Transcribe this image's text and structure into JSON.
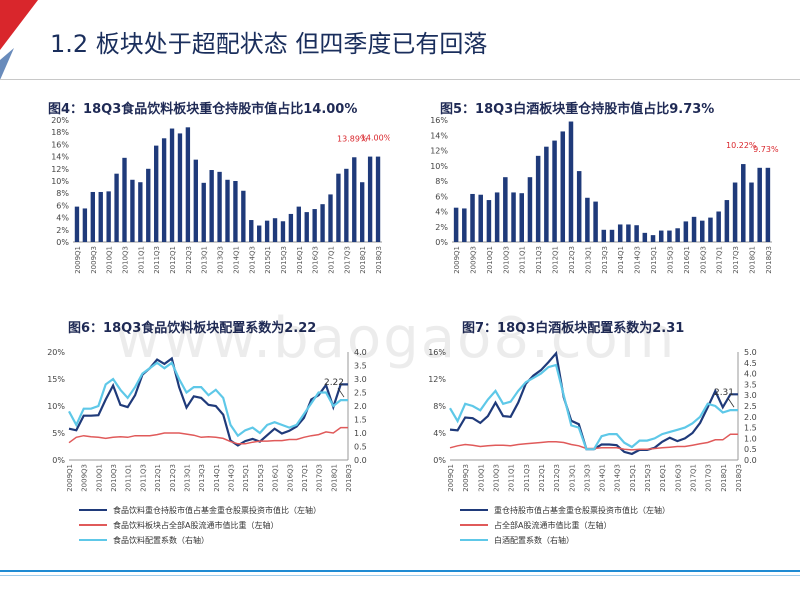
{
  "slide": {
    "title": "1.2 板块处于超配状态 但四季度已有回落",
    "watermark": "www.baogao8.com"
  },
  "chart_data": [
    {
      "id": "fig4",
      "type": "bar",
      "title": "图4：18Q3食品饮料板块重仓持股市值占比14.00%",
      "color": "#1f3a7a",
      "ylim": [
        0,
        20
      ],
      "yticks": [
        "0%",
        "2%",
        "4%",
        "6%",
        "8%",
        "10%",
        "12%",
        "14%",
        "16%",
        "18%",
        "20%"
      ],
      "categories": [
        "2009Q1",
        "2009Q2",
        "2009Q3",
        "2009Q4",
        "2010Q1",
        "2010Q2",
        "2010Q3",
        "2010Q4",
        "2011Q1",
        "2011Q2",
        "2011Q3",
        "2011Q4",
        "2012Q1",
        "2012Q2",
        "2012Q3",
        "2012Q4",
        "2013Q1",
        "2013Q2",
        "2013Q3",
        "2013Q4",
        "2014Q1",
        "2014Q2",
        "2014Q3",
        "2014Q4",
        "2015Q1",
        "2015Q2",
        "2015Q3",
        "2015Q4",
        "2016Q1",
        "2016Q2",
        "2016Q3",
        "2016Q4",
        "2017Q1",
        "2017Q2",
        "2017Q3",
        "2017Q4",
        "2018Q1",
        "2018Q2",
        "2018Q3"
      ],
      "xticklabels": [
        "2009Q1",
        "2009Q3",
        "2010Q1",
        "2010Q3",
        "2011Q1",
        "2011Q3",
        "2012Q1",
        "2012Q3",
        "2013Q1",
        "2013Q3",
        "2014Q1",
        "2014Q3",
        "2015Q1",
        "2015Q3",
        "2016Q1",
        "2016Q3",
        "2017Q1",
        "2017Q3",
        "2018Q1",
        "2018Q3"
      ],
      "values": [
        5.8,
        5.5,
        8.2,
        8.2,
        8.3,
        11.2,
        13.8,
        10.2,
        9.8,
        12.0,
        15.8,
        17.0,
        18.6,
        17.8,
        18.8,
        13.5,
        9.7,
        11.8,
        11.5,
        10.2,
        10.0,
        8.4,
        3.6,
        2.7,
        3.5,
        3.9,
        3.4,
        4.6,
        5.8,
        4.9,
        5.4,
        6.2,
        7.8,
        11.2,
        12.0,
        13.89,
        9.8,
        14.0,
        14.0
      ],
      "annotations": [
        {
          "index": 35,
          "text": "13.89%"
        },
        {
          "index": 38,
          "text": "14.00%"
        }
      ]
    },
    {
      "id": "fig5",
      "type": "bar",
      "title": "图5：18Q3白酒板块重仓持股市值占比9.73%",
      "color": "#1f3a7a",
      "ylim": [
        0,
        16
      ],
      "yticks": [
        "0%",
        "2%",
        "4%",
        "6%",
        "8%",
        "10%",
        "12%",
        "14%",
        "16%"
      ],
      "categories": [
        "2009Q1",
        "2009Q2",
        "2009Q3",
        "2009Q4",
        "2010Q1",
        "2010Q2",
        "2010Q3",
        "2010Q4",
        "2011Q1",
        "2011Q2",
        "2011Q3",
        "2011Q4",
        "2012Q1",
        "2012Q2",
        "2012Q3",
        "2012Q4",
        "2013Q1",
        "2013Q2",
        "2013Q3",
        "2013Q4",
        "2014Q1",
        "2014Q2",
        "2014Q3",
        "2014Q4",
        "2015Q1",
        "2015Q2",
        "2015Q3",
        "2015Q4",
        "2016Q1",
        "2016Q2",
        "2016Q3",
        "2016Q4",
        "2017Q1",
        "2017Q2",
        "2017Q3",
        "2017Q4",
        "2018Q1",
        "2018Q2",
        "2018Q3"
      ],
      "xticklabels": [
        "2009Q1",
        "2009Q3",
        "2010Q1",
        "2010Q3",
        "2011Q1",
        "2011Q3",
        "2012Q1",
        "2012Q3",
        "2013Q1",
        "2013Q3",
        "2014Q1",
        "2014Q3",
        "2015Q1",
        "2015Q3",
        "2016Q1",
        "2016Q3",
        "2017Q1",
        "2017Q3",
        "2018Q1",
        "2018Q3"
      ],
      "values": [
        4.5,
        4.4,
        6.3,
        6.2,
        5.5,
        6.5,
        8.5,
        6.5,
        6.4,
        8.5,
        11.3,
        12.5,
        13.3,
        14.5,
        15.8,
        9.3,
        5.8,
        5.3,
        1.6,
        1.6,
        2.3,
        2.3,
        2.2,
        1.2,
        0.9,
        1.5,
        1.5,
        1.8,
        2.7,
        3.3,
        2.8,
        3.2,
        4.0,
        5.5,
        7.8,
        10.22,
        7.8,
        9.73,
        9.73
      ],
      "annotations": [
        {
          "index": 35,
          "text": "10.22%"
        },
        {
          "index": 38,
          "text": "9.73%"
        }
      ]
    },
    {
      "id": "fig6",
      "type": "line",
      "title": "图6：18Q3食品饮料板块配置系数为2.22",
      "ylim": [
        0,
        20
      ],
      "yticks": [
        "0%",
        "5%",
        "10%",
        "15%",
        "20%"
      ],
      "y2lim": [
        0,
        4
      ],
      "y2ticks": [
        "0.0",
        "0.5",
        "1.0",
        "1.5",
        "2.0",
        "2.5",
        "3.0",
        "3.5",
        "4.0"
      ],
      "x": [
        "2009Q1",
        "2009Q2",
        "2009Q3",
        "2009Q4",
        "2010Q1",
        "2010Q2",
        "2010Q3",
        "2010Q4",
        "2011Q1",
        "2011Q2",
        "2011Q3",
        "2011Q4",
        "2012Q1",
        "2012Q2",
        "2012Q3",
        "2012Q4",
        "2013Q1",
        "2013Q2",
        "2013Q3",
        "2013Q4",
        "2014Q1",
        "2014Q2",
        "2014Q3",
        "2014Q4",
        "2015Q1",
        "2015Q2",
        "2015Q3",
        "2015Q4",
        "2016Q1",
        "2016Q2",
        "2016Q3",
        "2016Q4",
        "2017Q1",
        "2017Q2",
        "2017Q3",
        "2017Q4",
        "2018Q1",
        "2018Q2",
        "2018Q3"
      ],
      "xticklabels": [
        "2009Q1",
        "2009Q3",
        "2010Q1",
        "2010Q3",
        "2011Q1",
        "2011Q3",
        "2012Q1",
        "2012Q3",
        "2013Q1",
        "2013Q3",
        "2014Q1",
        "2014Q3",
        "2015Q1",
        "2015Q3",
        "2016Q1",
        "2016Q3",
        "2017Q1",
        "2017Q3",
        "2018Q1",
        "2018Q3"
      ],
      "series": [
        {
          "name": "食品饮料重仓持股市值占基金重仓股票投资市值比（左轴）",
          "axis": "left",
          "color": "#1f3a7a",
          "width": 2.2,
          "values": [
            5.8,
            5.5,
            8.2,
            8.2,
            8.3,
            11.2,
            13.8,
            10.2,
            9.8,
            12.0,
            15.8,
            17.0,
            18.6,
            17.8,
            18.8,
            13.5,
            9.7,
            11.8,
            11.5,
            10.2,
            10.0,
            8.4,
            3.6,
            2.7,
            3.5,
            3.9,
            3.4,
            4.6,
            5.8,
            4.9,
            5.4,
            6.2,
            7.8,
            11.2,
            12.0,
            13.89,
            9.8,
            14.0,
            14.0
          ]
        },
        {
          "name": "食品饮料板块占全部A股流通市值比重（左轴）",
          "axis": "left",
          "color": "#e05a5a",
          "width": 1.5,
          "values": [
            3.2,
            4.2,
            4.5,
            4.3,
            4.2,
            4.0,
            4.2,
            4.3,
            4.2,
            4.5,
            4.5,
            4.5,
            4.7,
            5.0,
            5.0,
            5.0,
            4.8,
            4.6,
            4.2,
            4.3,
            4.2,
            4.0,
            3.4,
            3.0,
            3.0,
            3.3,
            3.5,
            3.5,
            3.6,
            3.6,
            3.8,
            3.8,
            4.2,
            4.5,
            4.7,
            5.2,
            5.0,
            6.0,
            6.0
          ]
        },
        {
          "name": "食品饮料配置系数（右轴）",
          "axis": "right",
          "color": "#5ec8e8",
          "width": 2.2,
          "values": [
            1.8,
            1.3,
            1.9,
            1.9,
            2.0,
            2.8,
            3.0,
            2.6,
            2.3,
            2.7,
            3.2,
            3.4,
            3.6,
            3.4,
            3.6,
            3.0,
            2.5,
            2.7,
            2.7,
            2.4,
            2.6,
            2.3,
            1.3,
            0.9,
            1.1,
            1.2,
            1.0,
            1.3,
            1.4,
            1.3,
            1.2,
            1.3,
            1.7,
            2.1,
            2.5,
            2.5,
            2.0,
            2.22,
            2.22
          ]
        }
      ],
      "annotations": [
        {
          "series": 2,
          "index": 38,
          "text": "2.22"
        }
      ]
    },
    {
      "id": "fig7",
      "type": "line",
      "title": "图7：18Q3白酒板块配置系数为2.31",
      "ylim": [
        0,
        16
      ],
      "yticks": [
        "0%",
        "4%",
        "8%",
        "12%",
        "16%"
      ],
      "y2lim": [
        0,
        5
      ],
      "y2ticks": [
        "0.0",
        "0.5",
        "1.0",
        "1.5",
        "2.0",
        "2.5",
        "3.0",
        "3.5",
        "4.0",
        "4.5",
        "5.0"
      ],
      "x": [
        "2009Q1",
        "2009Q2",
        "2009Q3",
        "2009Q4",
        "2010Q1",
        "2010Q2",
        "2010Q3",
        "2010Q4",
        "2011Q1",
        "2011Q2",
        "2011Q3",
        "2011Q4",
        "2012Q1",
        "2012Q2",
        "2012Q3",
        "2012Q4",
        "2013Q1",
        "2013Q2",
        "2013Q3",
        "2013Q4",
        "2014Q1",
        "2014Q2",
        "2014Q3",
        "2014Q4",
        "2015Q1",
        "2015Q2",
        "2015Q3",
        "2015Q4",
        "2016Q1",
        "2016Q2",
        "2016Q3",
        "2016Q4",
        "2017Q1",
        "2017Q2",
        "2017Q3",
        "2017Q4",
        "2018Q1",
        "2018Q2",
        "2018Q3"
      ],
      "xticklabels": [
        "2009Q1",
        "2009Q3",
        "2010Q1",
        "2010Q3",
        "2011Q1",
        "2011Q3",
        "2012Q1",
        "2012Q3",
        "2013Q1",
        "2013Q3",
        "2014Q1",
        "2014Q3",
        "2015Q1",
        "2015Q3",
        "2016Q1",
        "2016Q3",
        "2017Q1",
        "2017Q3",
        "2018Q1",
        "2018Q3"
      ],
      "series": [
        {
          "name": "重仓持股市值占基金重仓股票投资市值比（左轴）",
          "axis": "left",
          "color": "#1f3a7a",
          "width": 2.2,
          "values": [
            4.5,
            4.4,
            6.3,
            6.2,
            5.5,
            6.5,
            8.5,
            6.5,
            6.4,
            8.5,
            11.3,
            12.5,
            13.3,
            14.5,
            15.8,
            9.3,
            5.8,
            5.3,
            1.6,
            1.6,
            2.3,
            2.3,
            2.2,
            1.2,
            0.9,
            1.5,
            1.5,
            1.8,
            2.7,
            3.3,
            2.8,
            3.2,
            4.0,
            5.5,
            7.8,
            10.22,
            7.8,
            9.73,
            9.73
          ]
        },
        {
          "name": "占全部A股流通市值比重（左轴）",
          "axis": "left",
          "color": "#e05a5a",
          "width": 1.5,
          "values": [
            1.8,
            2.1,
            2.3,
            2.2,
            2.0,
            2.1,
            2.2,
            2.2,
            2.1,
            2.3,
            2.4,
            2.5,
            2.6,
            2.7,
            2.7,
            2.6,
            2.3,
            2.1,
            1.7,
            1.7,
            1.8,
            1.8,
            1.8,
            1.6,
            1.5,
            1.6,
            1.6,
            1.7,
            1.8,
            1.9,
            2.0,
            2.0,
            2.2,
            2.4,
            2.6,
            3.0,
            3.0,
            3.8,
            3.8
          ]
        },
        {
          "name": "白酒配置系数（右轴）",
          "axis": "right",
          "color": "#5ec8e8",
          "width": 2.2,
          "values": [
            2.4,
            1.8,
            2.6,
            2.5,
            2.3,
            2.8,
            3.2,
            2.6,
            2.7,
            3.2,
            3.6,
            3.8,
            4.0,
            4.3,
            4.4,
            3.0,
            1.6,
            1.5,
            0.5,
            0.5,
            1.1,
            1.2,
            1.2,
            0.8,
            0.6,
            0.9,
            0.9,
            1.0,
            1.2,
            1.3,
            1.4,
            1.5,
            1.7,
            2.0,
            2.6,
            2.5,
            2.2,
            2.31,
            2.31
          ]
        }
      ],
      "annotations": [
        {
          "series": 2,
          "index": 38,
          "text": "2.31"
        }
      ]
    }
  ]
}
